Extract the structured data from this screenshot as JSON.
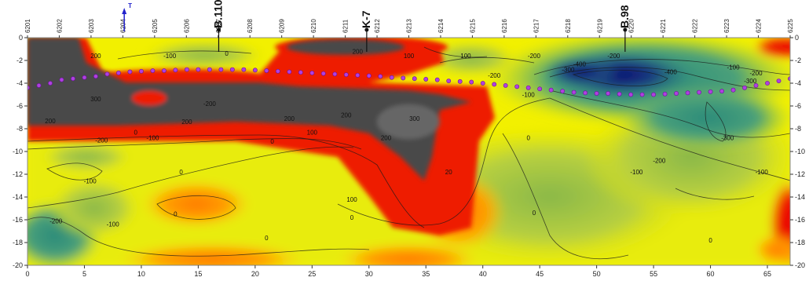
{
  "chart_data": {
    "type": "heatmap",
    "x_ticks": [
      0,
      5,
      10,
      15,
      20,
      25,
      30,
      35,
      40,
      45,
      50,
      55,
      60,
      65
    ],
    "y_ticks": [
      0,
      -2,
      -4,
      -6,
      -8,
      -10,
      -12,
      -14,
      -16,
      -18,
      -20
    ],
    "xlim": [
      0,
      67
    ],
    "ylim": [
      -20,
      0
    ],
    "top_labels": [
      "6201",
      "6202",
      "6203",
      "6204",
      "6205",
      "6206",
      "6207",
      "6208",
      "6209",
      "6210",
      "6211",
      "6212",
      "6213",
      "6214",
      "6215",
      "6216",
      "6217",
      "6218",
      "6219",
      "6220",
      "6221",
      "6222",
      "6223",
      "6224",
      "6225"
    ],
    "markers": [
      {
        "label": "B.110",
        "x": 16.8
      },
      {
        "label": "K-7",
        "x": 29.8
      },
      {
        "label": "B.98",
        "x": 52.5
      }
    ],
    "top_marker_label": "T",
    "contour_labels": [
      {
        "text": "200",
        "x": 6.0,
        "y": -1.8
      },
      {
        "text": "-100",
        "x": 12.5,
        "y": -1.8
      },
      {
        "text": "0",
        "x": 17.5,
        "y": -1.6
      },
      {
        "text": "200",
        "x": 29.0,
        "y": -1.4
      },
      {
        "text": "100",
        "x": 33.5,
        "y": -1.8
      },
      {
        "text": "100",
        "x": 38.5,
        "y": -1.8
      },
      {
        "text": "-200",
        "x": 44.5,
        "y": -1.8
      },
      {
        "text": "-200",
        "x": 51.5,
        "y": -1.8
      },
      {
        "text": "-100",
        "x": 62.0,
        "y": -2.8
      },
      {
        "text": "-200",
        "x": 64.0,
        "y": -3.3
      },
      {
        "text": "-300",
        "x": 63.5,
        "y": -4.0
      },
      {
        "text": "-300",
        "x": 47.5,
        "y": -3.0
      },
      {
        "text": "-400",
        "x": 48.5,
        "y": -2.5
      },
      {
        "text": "-400",
        "x": 56.5,
        "y": -3.2
      },
      {
        "text": "-200",
        "x": 41.0,
        "y": -3.5
      },
      {
        "text": "-100",
        "x": 44.0,
        "y": -5.2
      },
      {
        "text": "300",
        "x": 6.0,
        "y": -5.6
      },
      {
        "text": "-200",
        "x": 16.0,
        "y": -6.0
      },
      {
        "text": "200",
        "x": 2.0,
        "y": -7.5
      },
      {
        "text": "200",
        "x": 14.0,
        "y": -7.6
      },
      {
        "text": "200",
        "x": 23.0,
        "y": -7.3
      },
      {
        "text": "200",
        "x": 28.0,
        "y": -7.0
      },
      {
        "text": "300",
        "x": 34.0,
        "y": -7.3
      },
      {
        "text": "200",
        "x": 31.5,
        "y": -9.0
      },
      {
        "text": "100",
        "x": 25.0,
        "y": -8.5
      },
      {
        "text": "-200",
        "x": 6.5,
        "y": -9.2
      },
      {
        "text": "-100",
        "x": 11.0,
        "y": -9.0
      },
      {
        "text": "0",
        "x": 9.5,
        "y": -8.5
      },
      {
        "text": "0",
        "x": 21.5,
        "y": -9.3
      },
      {
        "text": "0",
        "x": 13.5,
        "y": -12.0
      },
      {
        "text": "-100",
        "x": 5.5,
        "y": -12.8
      },
      {
        "text": "20",
        "x": 37.0,
        "y": -12.0
      },
      {
        "text": "100",
        "x": 28.5,
        "y": -14.4
      },
      {
        "text": "0",
        "x": 13.0,
        "y": -15.7
      },
      {
        "text": "0",
        "x": 28.5,
        "y": -16.0
      },
      {
        "text": "0",
        "x": 44.5,
        "y": -15.6
      },
      {
        "text": "-200",
        "x": 2.5,
        "y": -16.3
      },
      {
        "text": "-100",
        "x": 7.5,
        "y": -16.6
      },
      {
        "text": "0",
        "x": 21.0,
        "y": -17.8
      },
      {
        "text": "0",
        "x": 44.0,
        "y": -9.0
      },
      {
        "text": "-200",
        "x": 55.5,
        "y": -11.0
      },
      {
        "text": "-300",
        "x": 61.5,
        "y": -9.0
      },
      {
        "text": "-100",
        "x": 53.5,
        "y": -12.0
      },
      {
        "text": "-100",
        "x": 64.5,
        "y": -12.0
      },
      {
        "text": "0",
        "x": 60.0,
        "y": -18.0
      }
    ],
    "boundary_points": [
      [
        0,
        -4.4
      ],
      [
        1,
        -4.2
      ],
      [
        2,
        -4.0
      ],
      [
        3,
        -3.7
      ],
      [
        4,
        -3.6
      ],
      [
        5,
        -3.5
      ],
      [
        6,
        -3.4
      ],
      [
        7,
        -3.2
      ],
      [
        8,
        -3.1
      ],
      [
        9,
        -3.0
      ],
      [
        10,
        -2.95
      ],
      [
        11,
        -2.9
      ],
      [
        12,
        -2.9
      ],
      [
        13,
        -2.85
      ],
      [
        14,
        -2.8
      ],
      [
        15,
        -2.8
      ],
      [
        16,
        -2.8
      ],
      [
        17,
        -2.8
      ],
      [
        18,
        -2.8
      ],
      [
        19,
        -2.8
      ],
      [
        20,
        -2.85
      ],
      [
        21,
        -2.9
      ],
      [
        22,
        -2.95
      ],
      [
        23,
        -3.0
      ],
      [
        24,
        -3.05
      ],
      [
        25,
        -3.1
      ],
      [
        26,
        -3.15
      ],
      [
        27,
        -3.2
      ],
      [
        28,
        -3.25
      ],
      [
        29,
        -3.3
      ],
      [
        30,
        -3.35
      ],
      [
        31,
        -3.4
      ],
      [
        32,
        -3.5
      ],
      [
        33,
        -3.55
      ],
      [
        34,
        -3.6
      ],
      [
        35,
        -3.65
      ],
      [
        36,
        -3.7
      ],
      [
        37,
        -3.8
      ],
      [
        38,
        -3.85
      ],
      [
        39,
        -3.9
      ],
      [
        40,
        -4.0
      ],
      [
        41,
        -4.1
      ],
      [
        42,
        -4.2
      ],
      [
        43,
        -4.3
      ],
      [
        44,
        -4.4
      ],
      [
        45,
        -4.5
      ],
      [
        46,
        -4.6
      ],
      [
        47,
        -4.7
      ],
      [
        48,
        -4.8
      ],
      [
        49,
        -4.85
      ],
      [
        50,
        -4.9
      ],
      [
        51,
        -4.9
      ],
      [
        52,
        -4.95
      ],
      [
        53,
        -5.0
      ],
      [
        54,
        -5.0
      ],
      [
        55,
        -5.0
      ],
      [
        56,
        -4.95
      ],
      [
        57,
        -4.9
      ],
      [
        58,
        -4.85
      ],
      [
        59,
        -4.8
      ],
      [
        60,
        -4.75
      ],
      [
        61,
        -4.7
      ],
      [
        62,
        -4.6
      ],
      [
        63,
        -4.4
      ],
      [
        64,
        -4.2
      ],
      [
        65,
        -4.0
      ],
      [
        66,
        -3.8
      ],
      [
        67,
        -3.6
      ]
    ]
  }
}
